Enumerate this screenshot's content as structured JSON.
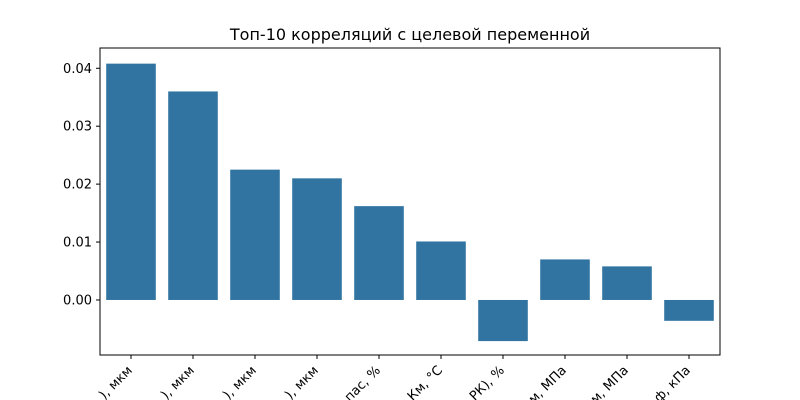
{
  "chart_data": {
    "type": "bar",
    "title": "Топ-10 корреляций с целевой переменной",
    "xlabel": "",
    "ylabel": "",
    "categories": [
      "), мкм",
      "), мкм",
      "), мкм",
      "), мкм",
      "пас, %",
      "Км, °C",
      "РК), %",
      "м, МПа",
      "м, МПа",
      "ф, кПа"
    ],
    "values": [
      0.0408,
      0.036,
      0.0225,
      0.021,
      0.0162,
      0.0101,
      -0.0071,
      0.007,
      0.0058,
      -0.0036
    ],
    "ylim": [
      -0.0095,
      0.0435
    ],
    "yticks": [
      0.0,
      0.01,
      0.02,
      0.03,
      0.04
    ],
    "ytick_labels": [
      "0.00",
      "0.01",
      "0.02",
      "0.03",
      "0.04"
    ],
    "bar_color": "#3274a1",
    "grid": false,
    "legend": "none"
  }
}
